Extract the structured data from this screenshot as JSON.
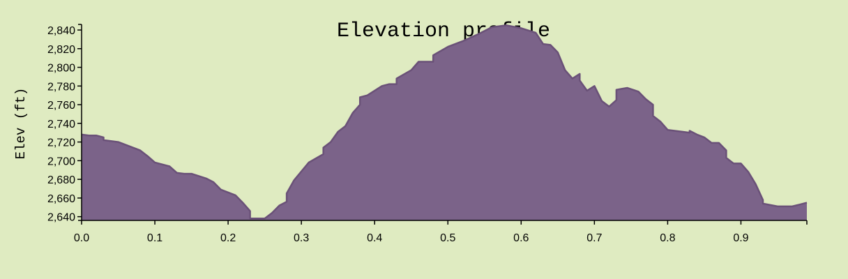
{
  "chart_data": {
    "type": "area",
    "title": "Elevation profile",
    "xlabel": "",
    "ylabel": "Elev (ft)",
    "xlim": [
      0,
      0.99
    ],
    "ylim": [
      2636,
      2846
    ],
    "xticks": [
      "0.0",
      "0.1",
      "0.2",
      "0.3",
      "0.4",
      "0.5",
      "0.6",
      "0.7",
      "0.8",
      "0.9"
    ],
    "yticks": [
      "2,640",
      "2,660",
      "2,680",
      "2,700",
      "2,720",
      "2,740",
      "2,760",
      "2,780",
      "2,800",
      "2,820",
      "2,840"
    ],
    "grid": false,
    "colors": {
      "fill": "#7b6389",
      "stroke": "#6a5178",
      "background": "#dfebc1"
    },
    "series": [
      {
        "x": [
          0.0,
          0.01,
          0.02,
          0.03,
          0.03,
          0.05,
          0.07,
          0.08,
          0.09,
          0.1,
          0.12,
          0.13,
          0.14,
          0.15,
          0.17,
          0.18,
          0.19,
          0.21,
          0.22,
          0.23,
          0.23,
          0.245,
          0.25,
          0.26,
          0.27,
          0.28,
          0.28,
          0.29,
          0.31,
          0.33,
          0.33,
          0.34,
          0.35,
          0.36,
          0.37,
          0.38,
          0.38,
          0.39,
          0.41,
          0.42,
          0.43,
          0.43,
          0.45,
          0.46,
          0.47,
          0.48,
          0.48,
          0.5,
          0.52,
          0.54,
          0.56,
          0.58,
          0.6,
          0.62,
          0.63,
          0.64,
          0.65,
          0.66,
          0.67,
          0.68,
          0.68,
          0.69,
          0.7,
          0.71,
          0.72,
          0.73,
          0.73,
          0.745,
          0.76,
          0.77,
          0.78,
          0.78,
          0.79,
          0.8,
          0.82,
          0.83,
          0.83,
          0.84,
          0.85,
          0.86,
          0.87,
          0.88,
          0.88,
          0.89,
          0.9,
          0.91,
          0.92,
          0.93,
          0.93,
          0.95,
          0.97,
          0.98,
          0.99
        ],
        "y": [
          2728,
          2727,
          2727,
          2725,
          2722,
          2720,
          2714,
          2711,
          2705,
          2698,
          2694,
          2687,
          2686,
          2686,
          2681,
          2677,
          2669,
          2663,
          2655,
          2646,
          2638,
          2638,
          2638,
          2644,
          2652,
          2656,
          2665,
          2679,
          2698,
          2707,
          2714,
          2720,
          2731,
          2737,
          2751,
          2760,
          2768,
          2770,
          2780,
          2782,
          2782,
          2788,
          2797,
          2806,
          2806,
          2806,
          2813,
          2822,
          2828,
          2835,
          2843,
          2845,
          2842,
          2837,
          2825,
          2824,
          2816,
          2797,
          2788,
          2793,
          2786,
          2775,
          2780,
          2764,
          2758,
          2765,
          2776,
          2778,
          2774,
          2766,
          2760,
          2748,
          2742,
          2733,
          2731,
          2730,
          2732,
          2728,
          2725,
          2719,
          2719,
          2711,
          2703,
          2697,
          2697,
          2688,
          2675,
          2658,
          2654,
          2651,
          2651,
          2653,
          2655
        ]
      }
    ]
  }
}
